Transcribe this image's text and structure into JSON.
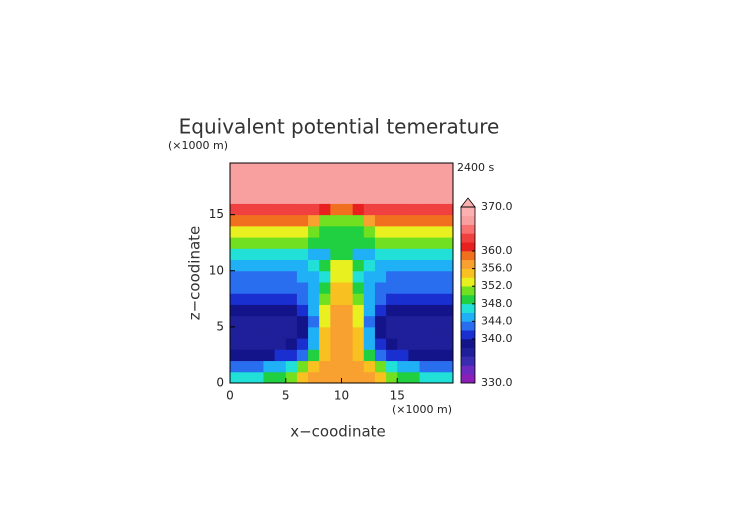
{
  "chart_data": {
    "type": "contour",
    "title": "Equivalent potential temerature",
    "x_label": "x−coodinate",
    "y_label": "z−coodinate",
    "x_unit": "(×1000 m)",
    "y_unit": "(×1000 m)",
    "annotation": "2400 s",
    "xlim": [
      0,
      20
    ],
    "ylim": [
      0,
      19.6
    ],
    "xticks": [
      0,
      5,
      10,
      15
    ],
    "yticks": [
      0,
      5,
      10,
      15
    ],
    "levels": [
      330,
      332,
      334,
      336,
      338,
      340,
      342,
      344,
      346,
      348,
      350,
      352,
      354,
      356,
      358,
      360,
      362,
      364,
      366,
      368,
      370
    ],
    "colors": [
      "#8a1fb8",
      "#6a2ac0",
      "#3a2cb0",
      "#1f1f9a",
      "#14148a",
      "#1a2fd0",
      "#2a6ef0",
      "#20b0f5",
      "#20e0d8",
      "#20d040",
      "#70e020",
      "#e8f020",
      "#f8c020",
      "#f8a030",
      "#f07020",
      "#e82020",
      "#f04040",
      "#f87070",
      "#f8a0a0",
      "#fcb0b0"
    ],
    "cbar_ticks": [
      {
        "value": 330,
        "label": "330.0"
      },
      {
        "value": 340,
        "label": "340.0"
      },
      {
        "value": 344,
        "label": "344.0"
      },
      {
        "value": 348,
        "label": "348.0"
      },
      {
        "value": 352,
        "label": "352.0"
      },
      {
        "value": 356,
        "label": "356.0"
      },
      {
        "value": 360,
        "label": "360.0"
      },
      {
        "value": 370,
        "label": "370.0"
      }
    ],
    "z": [
      [
        347,
        347,
        347,
        348,
        349,
        351,
        354,
        356,
        356,
        356,
        356,
        356,
        356,
        354,
        351,
        349,
        348,
        347,
        347,
        347
      ],
      [
        343,
        343,
        343,
        344,
        345,
        347,
        350,
        354,
        356,
        356,
        356,
        356,
        354,
        350,
        347,
        345,
        344,
        343,
        343,
        343
      ],
      [
        339,
        339,
        339,
        339,
        340,
        341,
        343,
        348,
        355,
        356,
        356,
        355,
        348,
        343,
        341,
        340,
        339,
        339,
        339,
        339
      ],
      [
        337,
        337,
        337,
        337,
        337,
        338,
        340,
        345,
        354,
        356,
        356,
        354,
        345,
        340,
        338,
        337,
        337,
        337,
        337,
        337
      ],
      [
        336,
        336,
        336,
        336,
        336,
        337,
        339,
        344,
        354,
        356,
        356,
        354,
        344,
        339,
        337,
        336,
        336,
        336,
        336,
        336
      ],
      [
        337,
        337,
        337,
        337,
        337,
        337,
        339,
        343,
        353,
        356,
        356,
        353,
        343,
        339,
        337,
        337,
        337,
        337,
        337,
        337
      ],
      [
        338,
        338,
        338,
        338,
        338,
        338,
        340,
        344,
        352,
        356,
        356,
        352,
        344,
        340,
        338,
        338,
        338,
        338,
        338,
        338
      ],
      [
        341,
        341,
        341,
        341,
        341,
        341,
        342,
        345,
        350,
        355,
        355,
        350,
        345,
        342,
        341,
        341,
        341,
        341,
        341,
        341
      ],
      [
        342,
        342,
        342,
        342,
        342,
        342,
        343,
        345,
        348,
        355,
        355,
        348,
        345,
        343,
        342,
        342,
        342,
        342,
        342,
        342
      ],
      [
        343,
        343,
        343,
        343,
        343,
        343,
        344,
        345,
        347,
        353,
        353,
        347,
        345,
        344,
        343,
        343,
        343,
        343,
        343,
        343
      ],
      [
        344,
        344,
        344,
        344,
        344,
        344,
        345,
        346,
        348,
        352,
        352,
        348,
        346,
        345,
        344,
        344,
        344,
        344,
        344,
        344
      ],
      [
        347,
        347,
        347,
        347,
        347,
        347,
        346,
        345,
        345,
        349,
        349,
        345,
        345,
        346,
        347,
        347,
        347,
        347,
        347,
        347
      ],
      [
        350,
        350,
        350,
        350,
        350,
        350,
        350,
        349,
        348,
        349,
        349,
        348,
        349,
        350,
        350,
        350,
        350,
        350,
        350,
        350
      ],
      [
        353,
        353,
        353,
        353,
        353,
        353,
        352,
        350,
        349,
        349,
        349,
        349,
        350,
        352,
        353,
        353,
        353,
        353,
        353,
        353
      ],
      [
        358,
        358,
        358,
        358,
        358,
        358,
        358,
        356,
        351,
        350,
        350,
        351,
        356,
        358,
        358,
        358,
        358,
        358,
        358,
        358
      ],
      [
        362,
        362,
        362,
        362,
        362,
        362,
        362,
        362,
        360,
        358,
        358,
        360,
        362,
        362,
        362,
        362,
        362,
        362,
        362,
        362
      ],
      [
        366,
        366,
        366,
        366,
        366,
        366,
        366,
        366,
        366,
        366,
        366,
        366,
        366,
        366,
        366,
        366,
        366,
        366,
        366,
        366
      ],
      [
        366,
        366,
        366,
        366,
        366,
        366,
        366,
        366,
        366,
        366,
        366,
        366,
        366,
        366,
        366,
        366,
        366,
        366,
        366,
        366
      ],
      [
        366,
        366,
        366,
        366,
        366,
        366,
        366,
        366,
        366,
        366,
        366,
        366,
        366,
        366,
        366,
        366,
        366,
        366,
        366,
        366
      ],
      [
        366,
        366,
        366,
        366,
        366,
        366,
        366,
        366,
        366,
        366,
        366,
        366,
        366,
        366,
        366,
        366,
        366,
        366,
        366,
        366
      ]
    ]
  }
}
